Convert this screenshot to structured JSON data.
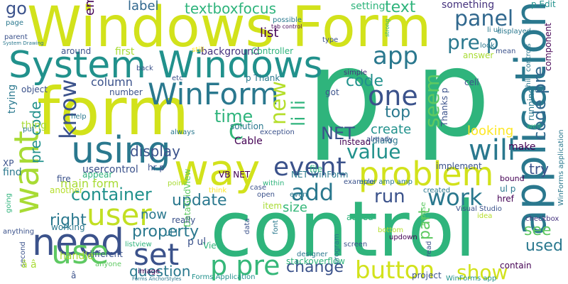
{
  "words": [
    {
      "text": "p p",
      "color": "#2fb47c",
      "hex": "2fb47c"
    },
    {
      "text": "control",
      "color": "#2fb47c"
    },
    {
      "text": "form",
      "color": "#d2e21b"
    },
    {
      "text": "Windows Form",
      "color": "#d2e21b"
    },
    {
      "text": "System Windows",
      "color": "#21918c"
    },
    {
      "text": "way",
      "color": "#d2e21b"
    },
    {
      "text": "application",
      "color": "#2a788e"
    },
    {
      "text": "WinForm",
      "color": "#2a788e"
    },
    {
      "text": "need",
      "color": "#3b528b"
    },
    {
      "text": "using",
      "color": "#2a788e"
    },
    {
      "text": "problem",
      "color": "#d2e21b"
    },
    {
      "text": "user",
      "color": "#c2df23"
    },
    {
      "text": "want",
      "color": "#a8db34"
    },
    {
      "text": "use",
      "color": "#5ec962"
    },
    {
      "text": "one",
      "color": "#3b528b"
    },
    {
      "text": "app",
      "color": "#2a788e"
    },
    {
      "text": "set",
      "color": "#3b528b"
    },
    {
      "text": "event",
      "color": "#3b528b"
    },
    {
      "text": "container",
      "color": "#21918c"
    },
    {
      "text": "value",
      "color": "#21918c"
    },
    {
      "text": "will",
      "color": "#2a788e"
    },
    {
      "text": "button",
      "color": "#d2e21b"
    },
    {
      "text": "show",
      "color": "#d2e21b"
    },
    {
      "text": "work",
      "color": "#2a788e"
    },
    {
      "text": "add",
      "color": "#2a788e"
    },
    {
      "text": "panel",
      "color": "#31688e"
    },
    {
      "text": "pre p",
      "color": "#2a788e"
    },
    {
      "text": "know",
      "color": "#3b528b"
    },
    {
      "text": "new",
      "color": "#b5de2b"
    },
    {
      "text": "li li",
      "color": "#2fb47c"
    },
    {
      "text": "seem",
      "color": "#5ec962"
    },
    {
      "text": "code",
      "color": "#21918c"
    },
    {
      "text": "code pre",
      "color": "#31688e"
    },
    {
      "text": "p pre",
      "color": "#35b779"
    },
    {
      "text": "NET",
      "color": "#3b528b"
    },
    {
      "text": "display",
      "color": "#3b528b"
    },
    {
      "text": "update",
      "color": "#2a788e"
    },
    {
      "text": "property",
      "color": "#2a788e"
    },
    {
      "text": "question",
      "color": "#2a788e"
    },
    {
      "text": "change",
      "color": "#3b528b"
    },
    {
      "text": "run",
      "color": "#3b528b"
    },
    {
      "text": "part",
      "color": "#5ec962"
    },
    {
      "text": "used",
      "color": "#2a788e"
    },
    {
      "text": "top",
      "color": "#2a788e"
    },
    {
      "text": "create",
      "color": "#21918c"
    },
    {
      "text": "time",
      "color": "#2fb47c"
    },
    {
      "text": "C",
      "color": "#35b779"
    },
    {
      "text": "Cable",
      "color": "#440154"
    },
    {
      "text": "textboxfocus",
      "color": "#2fb47c"
    },
    {
      "text": "label",
      "color": "#31688e"
    },
    {
      "text": "text",
      "color": "#2fb47c"
    },
    {
      "text": "list",
      "color": "#440154"
    },
    {
      "text": "go",
      "color": "#3b528b"
    },
    {
      "text": "em",
      "color": "#440154"
    },
    {
      "text": "see",
      "color": "#5ec962"
    },
    {
      "text": "try",
      "color": "#3b528b"
    },
    {
      "text": "make",
      "color": "#440154"
    },
    {
      "text": "size",
      "color": "#35b779"
    },
    {
      "text": "now",
      "color": "#2a788e"
    },
    {
      "text": "right",
      "color": "#2a788e"
    },
    {
      "text": "main form",
      "color": "#a8db34"
    },
    {
      "text": "usercontrol",
      "color": "#3b528b"
    },
    {
      "text": "column",
      "color": "#3b528b"
    },
    {
      "text": "pre code",
      "color": "#21918c"
    },
    {
      "text": "something",
      "color": "#46337e"
    },
    {
      "text": "looking",
      "color": "#fde725"
    },
    {
      "text": "background",
      "color": "#46337e"
    },
    {
      "text": "setting",
      "color": "#2fb47c"
    },
    {
      "text": "p Edit",
      "color": "#21918c"
    },
    {
      "text": "first",
      "color": "#a8db34"
    },
    {
      "text": "Controller",
      "color": "#2fb47c"
    },
    {
      "text": "Thanks p",
      "color": "#3b528b"
    },
    {
      "text": "dialog",
      "color": "#2a788e"
    },
    {
      "text": "solution",
      "color": "#2a788e"
    },
    {
      "text": "exception",
      "color": "#3b528b"
    },
    {
      "text": "hr p",
      "color": "#3b528b"
    },
    {
      "text": "VB NET",
      "color": "#440154"
    },
    {
      "text": "NET WinForm",
      "color": "#2a788e"
    },
    {
      "text": "ul p",
      "color": "#2a788e"
    },
    {
      "text": "bound",
      "color": "#440154"
    },
    {
      "text": "href",
      "color": "#440154"
    },
    {
      "text": "Visual Studio",
      "color": "#3b528b"
    },
    {
      "text": "checkbox",
      "color": "#46337e"
    },
    {
      "text": "DataGridView",
      "color": "#5ec962"
    },
    {
      "text": "p ul",
      "color": "#3b528b"
    },
    {
      "text": "ul li",
      "color": "#2a788e"
    },
    {
      "text": "View",
      "color": "#2fb47c"
    },
    {
      "text": "item",
      "color": "#a8db34"
    },
    {
      "text": "stackoverflow",
      "color": "#2fb47c"
    },
    {
      "text": "project",
      "color": "#3b528b"
    },
    {
      "text": "WinForms app",
      "color": "#21918c"
    },
    {
      "text": "Forms Application",
      "color": "#21918c"
    },
    {
      "text": "image",
      "color": "#440154"
    },
    {
      "text": "different",
      "color": "#3b528b"
    },
    {
      "text": "anyone",
      "color": "#5ec962"
    },
    {
      "text": "handle",
      "color": "#a8db34"
    },
    {
      "text": "working",
      "color": "#2a788e"
    },
    {
      "text": "fire",
      "color": "#3b528b"
    },
    {
      "text": "another",
      "color": "#b5de2b"
    },
    {
      "text": "appear",
      "color": "#2fb47c"
    },
    {
      "text": "XP",
      "color": "#3b528b"
    },
    {
      "text": "find",
      "color": "#2a788e"
    },
    {
      "text": "contain",
      "color": "#440154"
    },
    {
      "text": "mouse",
      "color": "#5ec962"
    },
    {
      "text": "updown",
      "color": "#440154"
    },
    {
      "text": "screen",
      "color": "#3b528b"
    },
    {
      "text": "added",
      "color": "#2fb47c"
    },
    {
      "text": "example",
      "color": "#3b528b"
    },
    {
      "text": "designer",
      "color": "#2a788e"
    },
    {
      "text": "open",
      "color": "#3b528b"
    },
    {
      "text": "case",
      "color": "#3b528b"
    },
    {
      "text": "created",
      "color": "#2a788e"
    },
    {
      "text": "bottom",
      "color": "#b5de2b"
    },
    {
      "text": "idea",
      "color": "#b5de2b"
    },
    {
      "text": "implement",
      "color": "#3b528b"
    },
    {
      "text": "file",
      "color": "#2fb47c"
    },
    {
      "text": "instead",
      "color": "#440154"
    },
    {
      "text": "already",
      "color": "#3b528b"
    },
    {
      "text": "cell",
      "color": "#3b528b"
    },
    {
      "text": "got",
      "color": "#3b528b"
    },
    {
      "text": "answer",
      "color": "#a8db34"
    },
    {
      "text": "mean",
      "color": "#3b528b"
    },
    {
      "text": "simple",
      "color": "#46337e"
    },
    {
      "text": "running",
      "color": "#2a788e"
    },
    {
      "text": "object",
      "color": "#3b528b"
    },
    {
      "text": "number",
      "color": "#3b528b"
    },
    {
      "text": "around",
      "color": "#3b528b"
    },
    {
      "text": "back",
      "color": "#3b528b"
    },
    {
      "text": "p Thank",
      "color": "#2a788e"
    },
    {
      "text": "etc",
      "color": "#3b528b"
    },
    {
      "text": "type",
      "color": "#3b528b"
    },
    {
      "text": "li ul",
      "color": "#2a788e"
    },
    {
      "text": "displayed",
      "color": "#2a788e"
    },
    {
      "text": "component",
      "color": "#440154"
    },
    {
      "text": "WinForms application",
      "color": "#2a788e"
    },
    {
      "text": "child controls",
      "color": "#2a788e"
    },
    {
      "text": "possible",
      "color": "#2a788e"
    },
    {
      "text": "tab control",
      "color": "#440154"
    },
    {
      "text": "strong",
      "color": "#2fb47c"
    },
    {
      "text": "page",
      "color": "#2a788e"
    },
    {
      "text": "parent",
      "color": "#3b528b"
    },
    {
      "text": "System Drawing",
      "color": "#2a788e"
    },
    {
      "text": "thing",
      "color": "#a8db34"
    },
    {
      "text": "trying",
      "color": "#2a788e"
    },
    {
      "text": "put",
      "color": "#2a788e"
    },
    {
      "text": "help",
      "color": "#2a788e"
    },
    {
      "text": "always",
      "color": "#2a788e"
    },
    {
      "text": "point",
      "color": "#a8db34"
    },
    {
      "text": "think",
      "color": "#fde725"
    },
    {
      "text": "really",
      "color": "#3b528b"
    },
    {
      "text": "listview",
      "color": "#2fb47c"
    },
    {
      "text": "font",
      "color": "#2a788e"
    },
    {
      "text": "program",
      "color": "#2a788e"
    },
    {
      "text": "read",
      "color": "#3b528b"
    },
    {
      "text": "second",
      "color": "#3b528b"
    },
    {
      "text": "anything",
      "color": "#3b528b"
    },
    {
      "text": "going",
      "color": "#2fb47c"
    },
    {
      "text": "â â",
      "color": "#a8db34"
    },
    {
      "text": "â",
      "color": "#3b528b"
    },
    {
      "text": "still",
      "color": "#fde725"
    },
    {
      "text": "Forms AnchorStyles",
      "color": "#2a788e"
    },
    {
      "text": "within",
      "color": "#2fb47c"
    },
    {
      "text": "even",
      "color": "#2a788e"
    },
    {
      "text": "look",
      "color": "#2a788e"
    },
    {
      "text": "well",
      "color": "#2fb47c"
    },
    {
      "text": "error amp amp",
      "color": "#2a788e"
    },
    {
      "text": "data",
      "color": "#3b528b"
    }
  ]
}
